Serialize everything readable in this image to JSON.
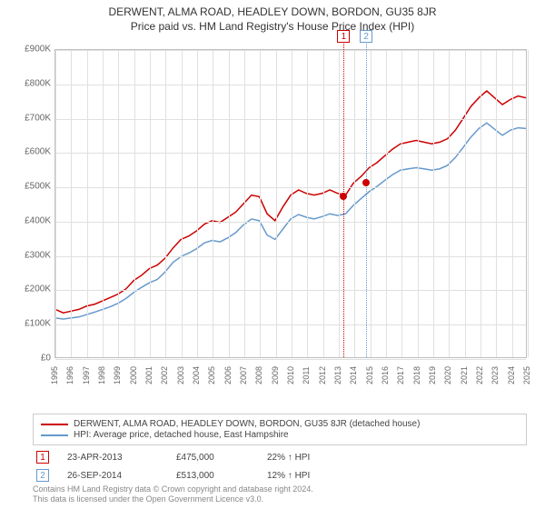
{
  "title": "DERWENT, ALMA ROAD, HEADLEY DOWN, BORDON, GU35 8JR",
  "subtitle": "Price paid vs. HM Land Registry's House Price Index (HPI)",
  "chart": {
    "type": "line",
    "background_color": "#ffffff",
    "grid_color": "#e0e0e0",
    "axis_color": "#bfbfbf",
    "ylim": [
      0,
      900000
    ],
    "ytick_step": 100000,
    "yticks": [
      "£0",
      "£100K",
      "£200K",
      "£300K",
      "£400K",
      "£500K",
      "£600K",
      "£700K",
      "£800K",
      "£900K"
    ],
    "xlim": [
      1995,
      2025
    ],
    "xticks": [
      1995,
      1996,
      1997,
      1998,
      1999,
      2000,
      2001,
      2002,
      2003,
      2004,
      2005,
      2006,
      2007,
      2008,
      2009,
      2010,
      2011,
      2012,
      2013,
      2014,
      2015,
      2016,
      2017,
      2018,
      2019,
      2020,
      2021,
      2022,
      2023,
      2024,
      2025
    ],
    "label_fontsize": 10,
    "line_width": 1.5,
    "series": [
      {
        "name": "derwent",
        "label": "DERWENT, ALMA ROAD, HEADLEY DOWN, BORDON, GU35 8JR (detached house)",
        "color": "#cc0000",
        "data": [
          [
            1995,
            140000
          ],
          [
            1995.5,
            130000
          ],
          [
            1996,
            135000
          ],
          [
            1996.5,
            140000
          ],
          [
            1997,
            150000
          ],
          [
            1997.5,
            155000
          ],
          [
            1998,
            165000
          ],
          [
            1998.5,
            175000
          ],
          [
            1999,
            185000
          ],
          [
            1999.5,
            200000
          ],
          [
            2000,
            225000
          ],
          [
            2000.5,
            240000
          ],
          [
            2001,
            260000
          ],
          [
            2001.5,
            270000
          ],
          [
            2002,
            290000
          ],
          [
            2002.5,
            320000
          ],
          [
            2003,
            345000
          ],
          [
            2003.5,
            355000
          ],
          [
            2004,
            370000
          ],
          [
            2004.5,
            390000
          ],
          [
            2005,
            400000
          ],
          [
            2005.5,
            395000
          ],
          [
            2006,
            410000
          ],
          [
            2006.5,
            425000
          ],
          [
            2007,
            450000
          ],
          [
            2007.5,
            475000
          ],
          [
            2008,
            470000
          ],
          [
            2008.5,
            420000
          ],
          [
            2009,
            400000
          ],
          [
            2009.5,
            440000
          ],
          [
            2010,
            475000
          ],
          [
            2010.5,
            490000
          ],
          [
            2011,
            480000
          ],
          [
            2011.5,
            475000
          ],
          [
            2012,
            480000
          ],
          [
            2012.5,
            490000
          ],
          [
            2013,
            480000
          ],
          [
            2013.5,
            475000
          ],
          [
            2014,
            510000
          ],
          [
            2014.5,
            530000
          ],
          [
            2015,
            555000
          ],
          [
            2015.5,
            570000
          ],
          [
            2016,
            590000
          ],
          [
            2016.5,
            610000
          ],
          [
            2017,
            625000
          ],
          [
            2017.5,
            630000
          ],
          [
            2018,
            635000
          ],
          [
            2018.5,
            630000
          ],
          [
            2019,
            625000
          ],
          [
            2019.5,
            630000
          ],
          [
            2020,
            640000
          ],
          [
            2020.5,
            665000
          ],
          [
            2021,
            700000
          ],
          [
            2021.5,
            735000
          ],
          [
            2022,
            760000
          ],
          [
            2022.5,
            780000
          ],
          [
            2023,
            760000
          ],
          [
            2023.5,
            740000
          ],
          [
            2024,
            755000
          ],
          [
            2024.5,
            765000
          ],
          [
            2025,
            760000
          ]
        ]
      },
      {
        "name": "hpi",
        "label": "HPI: Average price, detached house, East Hampshire",
        "color": "#6699cc",
        "data": [
          [
            1995,
            115000
          ],
          [
            1995.5,
            112000
          ],
          [
            1996,
            115000
          ],
          [
            1996.5,
            118000
          ],
          [
            1997,
            125000
          ],
          [
            1997.5,
            132000
          ],
          [
            1998,
            140000
          ],
          [
            1998.5,
            148000
          ],
          [
            1999,
            158000
          ],
          [
            1999.5,
            172000
          ],
          [
            2000,
            190000
          ],
          [
            2000.5,
            205000
          ],
          [
            2001,
            218000
          ],
          [
            2001.5,
            228000
          ],
          [
            2002,
            250000
          ],
          [
            2002.5,
            278000
          ],
          [
            2003,
            295000
          ],
          [
            2003.5,
            305000
          ],
          [
            2004,
            318000
          ],
          [
            2004.5,
            335000
          ],
          [
            2005,
            342000
          ],
          [
            2005.5,
            338000
          ],
          [
            2006,
            350000
          ],
          [
            2006.5,
            365000
          ],
          [
            2007,
            388000
          ],
          [
            2007.5,
            405000
          ],
          [
            2008,
            400000
          ],
          [
            2008.5,
            358000
          ],
          [
            2009,
            345000
          ],
          [
            2009.5,
            375000
          ],
          [
            2010,
            405000
          ],
          [
            2010.5,
            418000
          ],
          [
            2011,
            410000
          ],
          [
            2011.5,
            405000
          ],
          [
            2012,
            412000
          ],
          [
            2012.5,
            420000
          ],
          [
            2013,
            415000
          ],
          [
            2013.5,
            420000
          ],
          [
            2014,
            445000
          ],
          [
            2014.5,
            465000
          ],
          [
            2015,
            485000
          ],
          [
            2015.5,
            500000
          ],
          [
            2016,
            518000
          ],
          [
            2016.5,
            535000
          ],
          [
            2017,
            548000
          ],
          [
            2017.5,
            552000
          ],
          [
            2018,
            555000
          ],
          [
            2018.5,
            552000
          ],
          [
            2019,
            548000
          ],
          [
            2019.5,
            552000
          ],
          [
            2020,
            562000
          ],
          [
            2020.5,
            585000
          ],
          [
            2021,
            615000
          ],
          [
            2021.5,
            645000
          ],
          [
            2022,
            670000
          ],
          [
            2022.5,
            686000
          ],
          [
            2023,
            668000
          ],
          [
            2023.5,
            650000
          ],
          [
            2024,
            665000
          ],
          [
            2024.5,
            672000
          ],
          [
            2025,
            670000
          ]
        ]
      }
    ],
    "markers": [
      {
        "id": "1",
        "x": 2013.31,
        "color": "#cc0000"
      },
      {
        "id": "2",
        "x": 2014.74,
        "color": "#6699cc"
      }
    ],
    "points": [
      {
        "x": 2013.31,
        "y": 475000,
        "color": "#cc0000"
      },
      {
        "x": 2014.74,
        "y": 513000,
        "color": "#cc0000"
      }
    ]
  },
  "legend": {
    "series": [
      {
        "color": "#cc0000",
        "label": "DERWENT, ALMA ROAD, HEADLEY DOWN, BORDON, GU35 8JR (detached house)"
      },
      {
        "color": "#6699cc",
        "label": "HPI: Average price, detached house, East Hampshire"
      }
    ]
  },
  "sales": [
    {
      "id": "1",
      "color": "#cc0000",
      "date": "23-APR-2013",
      "price": "£475,000",
      "hpi": "22% ↑ HPI"
    },
    {
      "id": "2",
      "color": "#6699cc",
      "date": "26-SEP-2014",
      "price": "£513,000",
      "hpi": "12% ↑ HPI"
    }
  ],
  "attribution": {
    "line1": "Contains HM Land Registry data © Crown copyright and database right 2024.",
    "line2": "This data is licensed under the Open Government Licence v3.0."
  }
}
